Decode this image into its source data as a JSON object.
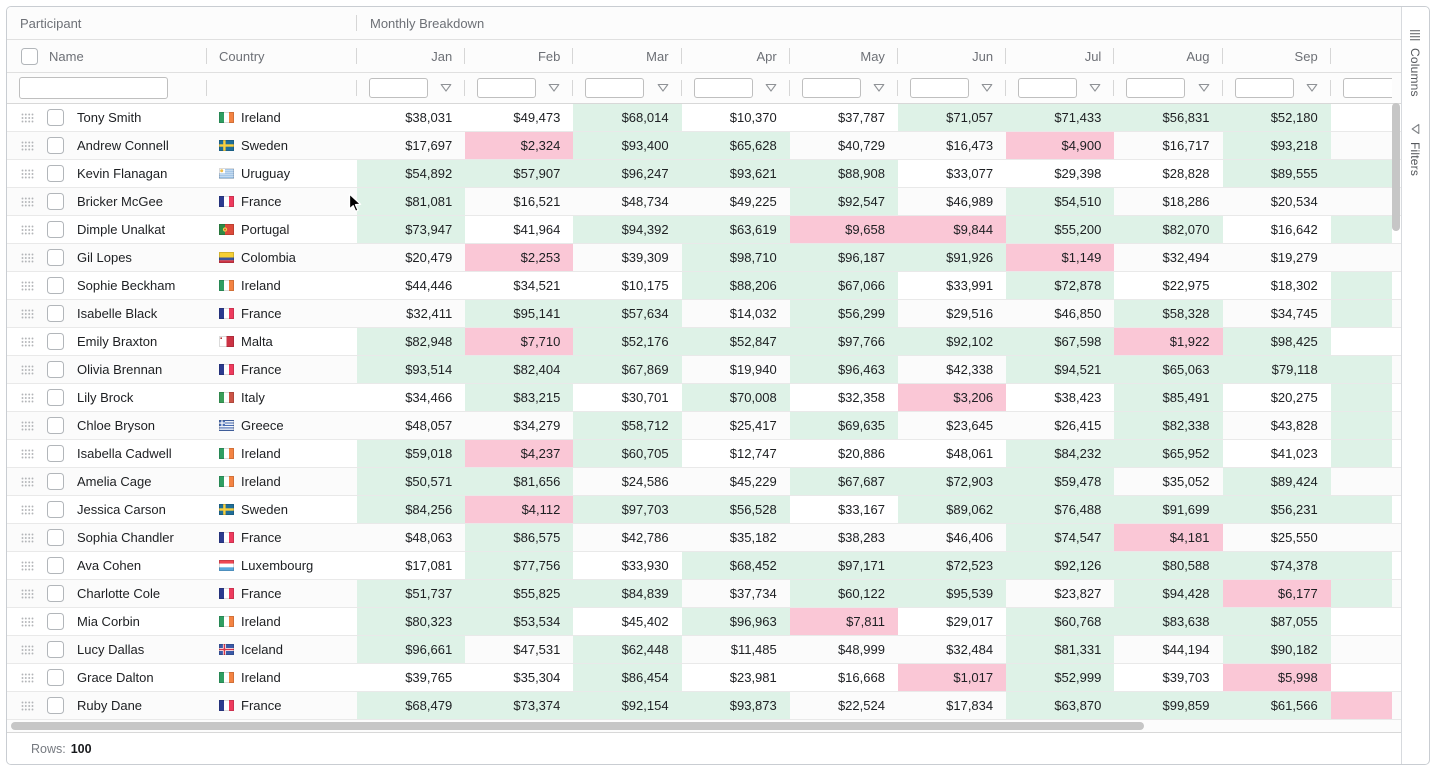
{
  "colors": {
    "green_cell": "#def2e7",
    "pink_cell": "#fac7d6",
    "scrollbar_thumb": "#c6c6c6"
  },
  "rules": {
    "green_min": 50000,
    "pink_max": 10000
  },
  "header": {
    "group_participant": "Participant",
    "group_monthly": "Monthly Breakdown",
    "name_col": "Name",
    "country_col": "Country",
    "months": [
      "Jan",
      "Feb",
      "Mar",
      "Apr",
      "May",
      "Jun",
      "Jul",
      "Aug",
      "Sep"
    ]
  },
  "filters": {
    "name_value": "",
    "month_values": ""
  },
  "side_panel": {
    "columns_tab": "Columns",
    "filters_tab": "Filters"
  },
  "status_bar": {
    "label": "Rows:",
    "value": "100"
  },
  "rows": [
    {
      "name": "Tony Smith",
      "country": "Ireland",
      "values": [
        38031,
        49473,
        68014,
        10370,
        37787,
        71057,
        71433,
        56831,
        52180
      ],
      "oct_peek": "white"
    },
    {
      "name": "Andrew Connell",
      "country": "Sweden",
      "values": [
        17697,
        2324,
        93400,
        65628,
        40729,
        16473,
        4900,
        16717,
        93218
      ],
      "oct_peek": "white"
    },
    {
      "name": "Kevin Flanagan",
      "country": "Uruguay",
      "values": [
        54892,
        57907,
        96247,
        93621,
        88908,
        33077,
        29398,
        28828,
        89555
      ],
      "oct_peek": "green"
    },
    {
      "name": "Bricker McGee",
      "country": "France",
      "values": [
        81081,
        16521,
        48734,
        49225,
        92547,
        46989,
        54510,
        18286,
        20534
      ],
      "oct_peek": "white"
    },
    {
      "name": "Dimple Unalkat",
      "country": "Portugal",
      "values": [
        73947,
        41964,
        94392,
        63619,
        9658,
        9844,
        55200,
        82070,
        16642
      ],
      "oct_peek": "green"
    },
    {
      "name": "Gil Lopes",
      "country": "Colombia",
      "values": [
        20479,
        2253,
        39309,
        98710,
        96187,
        91926,
        1149,
        32494,
        19279
      ],
      "oct_peek": "white"
    },
    {
      "name": "Sophie Beckham",
      "country": "Ireland",
      "values": [
        44446,
        34521,
        10175,
        88206,
        67066,
        33991,
        72878,
        22975,
        18302
      ],
      "oct_peek": "green"
    },
    {
      "name": "Isabelle Black",
      "country": "France",
      "values": [
        32411,
        95141,
        57634,
        14032,
        56299,
        29516,
        46850,
        58328,
        34745
      ],
      "oct_peek": "green"
    },
    {
      "name": "Emily Braxton",
      "country": "Malta",
      "values": [
        82948,
        7710,
        52176,
        52847,
        97766,
        92102,
        67598,
        1922,
        98425
      ],
      "oct_peek": "white"
    },
    {
      "name": "Olivia Brennan",
      "country": "France",
      "values": [
        93514,
        82404,
        67869,
        19940,
        96463,
        42338,
        94521,
        65063,
        79118
      ],
      "oct_peek": "green"
    },
    {
      "name": "Lily Brock",
      "country": "Italy",
      "values": [
        34466,
        83215,
        30701,
        70008,
        32358,
        3206,
        38423,
        85491,
        20275
      ],
      "oct_peek": "green"
    },
    {
      "name": "Chloe Bryson",
      "country": "Greece",
      "values": [
        48057,
        34279,
        58712,
        25417,
        69635,
        23645,
        26415,
        82338,
        43828
      ],
      "oct_peek": "green"
    },
    {
      "name": "Isabella Cadwell",
      "country": "Ireland",
      "values": [
        59018,
        4237,
        60705,
        12747,
        20886,
        48061,
        84232,
        65952,
        41023
      ],
      "oct_peek": "green"
    },
    {
      "name": "Amelia Cage",
      "country": "Ireland",
      "values": [
        50571,
        81656,
        24586,
        45229,
        67687,
        72903,
        59478,
        35052,
        89424
      ],
      "oct_peek": "white"
    },
    {
      "name": "Jessica Carson",
      "country": "Sweden",
      "values": [
        84256,
        4112,
        97703,
        56528,
        33167,
        89062,
        76488,
        91699,
        56231
      ],
      "oct_peek": "green"
    },
    {
      "name": "Sophia Chandler",
      "country": "France",
      "values": [
        48063,
        86575,
        42786,
        35182,
        38283,
        46406,
        74547,
        4181,
        25550
      ],
      "oct_peek": "white"
    },
    {
      "name": "Ava Cohen",
      "country": "Luxembourg",
      "values": [
        17081,
        77756,
        33930,
        68452,
        97171,
        72523,
        92126,
        80588,
        74378
      ],
      "oct_peek": "green"
    },
    {
      "name": "Charlotte Cole",
      "country": "France",
      "values": [
        51737,
        55825,
        84839,
        37734,
        60122,
        95539,
        23827,
        94428,
        6177
      ],
      "oct_peek": "green"
    },
    {
      "name": "Mia Corbin",
      "country": "Ireland",
      "values": [
        80323,
        53534,
        45402,
        96963,
        7811,
        29017,
        60768,
        83638,
        87055
      ],
      "oct_peek": "white"
    },
    {
      "name": "Lucy Dallas",
      "country": "Iceland",
      "values": [
        96661,
        47531,
        62448,
        11485,
        48999,
        32484,
        81331,
        44194,
        90182
      ],
      "oct_peek": "white"
    },
    {
      "name": "Grace Dalton",
      "country": "Ireland",
      "values": [
        39765,
        35304,
        86454,
        23981,
        16668,
        1017,
        52999,
        39703,
        5998
      ],
      "oct_peek": "white"
    },
    {
      "name": "Ruby Dane",
      "country": "France",
      "values": [
        68479,
        73374,
        92154,
        93873,
        22524,
        17834,
        63870,
        99859,
        61566
      ],
      "oct_peek": "pink"
    }
  ]
}
